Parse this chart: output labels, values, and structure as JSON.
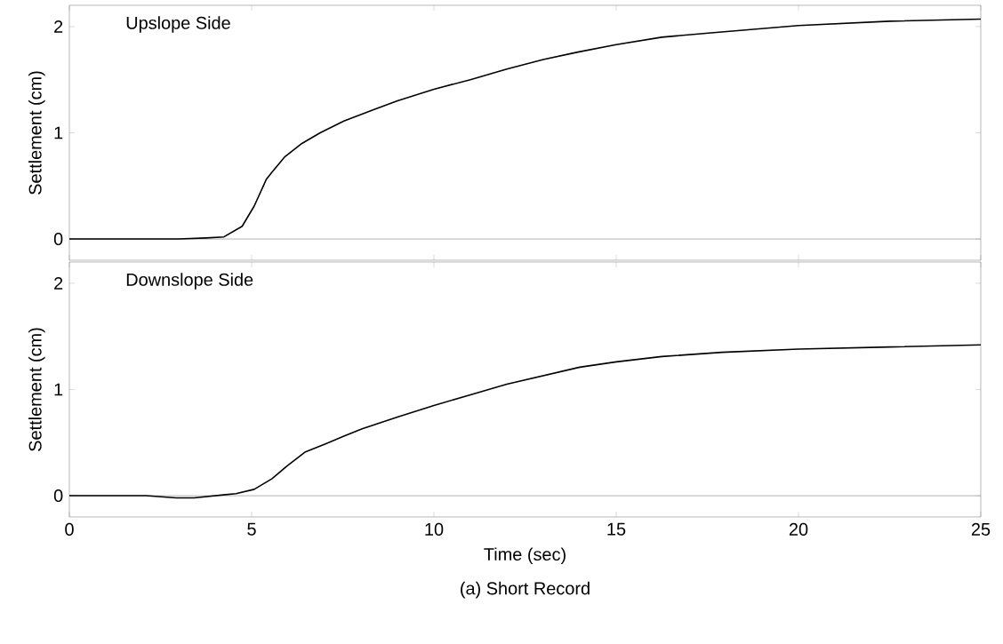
{
  "chart_data": [
    {
      "type": "line",
      "ylabel": "Settlement (cm)",
      "annotations": [
        "Upslope Side"
      ],
      "xlim": [
        0,
        25
      ],
      "xticks": [
        0,
        5,
        10,
        15,
        20,
        25
      ],
      "ylim": [
        -0.2,
        2.2
      ],
      "yticks": [
        0,
        1,
        2
      ],
      "tick_labels": "y",
      "ref_lines": [
        {
          "axis": "y",
          "value": 0,
          "color": "#a0a0a0"
        }
      ],
      "series": [
        {
          "color": "#000000",
          "x": [
            0,
            3,
            3.75,
            4.24,
            4.74,
            5.07,
            5.4,
            5.56,
            5.9,
            6.38,
            6.88,
            7.53,
            8.36,
            9.0,
            10,
            11,
            12,
            13,
            13.95,
            15,
            16.25,
            17.6,
            20,
            22.5,
            25
          ],
          "values": [
            0,
            0,
            0.01,
            0.02,
            0.12,
            0.31,
            0.56,
            0.63,
            0.77,
            0.9,
            1.0,
            1.11,
            1.22,
            1.3,
            1.41,
            1.5,
            1.6,
            1.69,
            1.76,
            1.83,
            1.9,
            1.94,
            2.01,
            2.05,
            2.07
          ]
        }
      ]
    },
    {
      "type": "line",
      "xlabel": "Time (sec)",
      "ylabel": "Settlement (cm)",
      "annotations": [
        "Downslope Side",
        "(a) Short Record"
      ],
      "xlim": [
        0,
        25
      ],
      "xticks": [
        0,
        5,
        10,
        15,
        20,
        25
      ],
      "ylim": [
        -0.2,
        2.2
      ],
      "yticks": [
        0,
        1,
        2
      ],
      "ref_lines": [
        {
          "axis": "y",
          "value": 0,
          "color": "#a0a0a0"
        }
      ],
      "series": [
        {
          "color": "#000000",
          "x": [
            0,
            2.1,
            2.93,
            3.42,
            4.57,
            5.07,
            5.56,
            5.97,
            6.46,
            7.04,
            7.53,
            8.03,
            9.0,
            10,
            11,
            12,
            13,
            14,
            15,
            16.25,
            17.9,
            20,
            22.5,
            25
          ],
          "values": [
            0,
            0,
            -0.02,
            -0.02,
            0.02,
            0.06,
            0.16,
            0.28,
            0.41,
            0.49,
            0.56,
            0.63,
            0.74,
            0.85,
            0.95,
            1.05,
            1.13,
            1.21,
            1.26,
            1.31,
            1.35,
            1.38,
            1.4,
            1.42
          ]
        }
      ]
    }
  ]
}
